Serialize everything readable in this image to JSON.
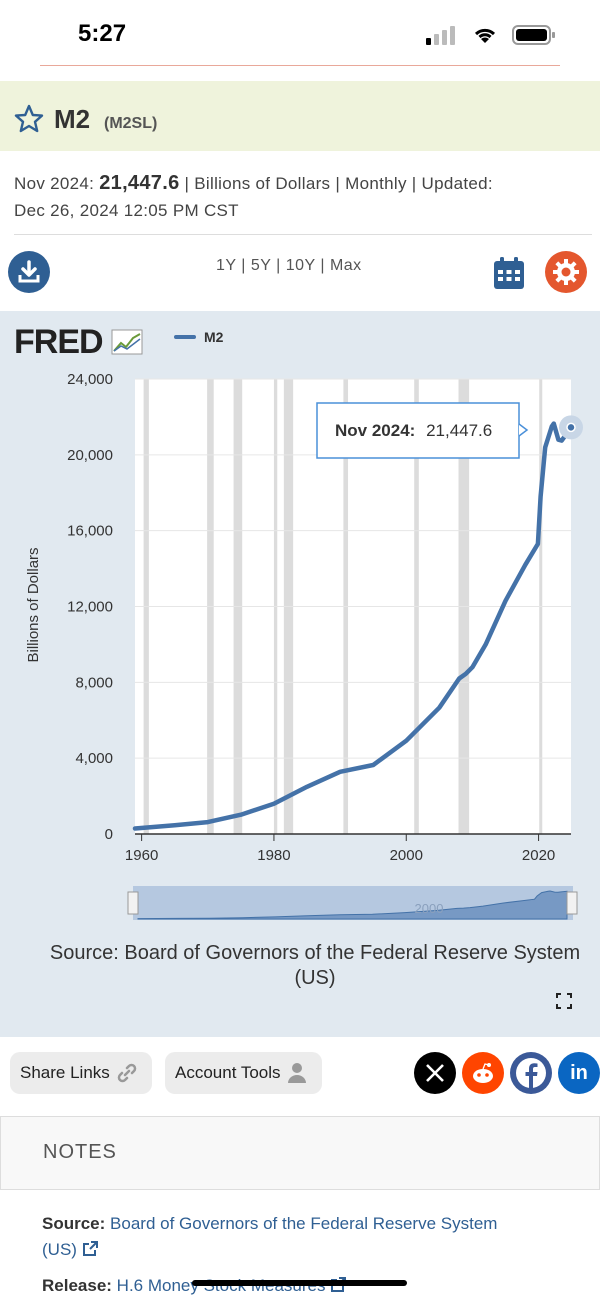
{
  "status": {
    "time": "5:27"
  },
  "series": {
    "title": "M2",
    "id": "(M2SL)",
    "latest_label": "Nov 2024:",
    "latest_value": "21,447.6",
    "units": "| Billions of Dollars | Monthly | Updated:",
    "updated": "Dec 26, 2024 12:05 PM CST"
  },
  "ranges": {
    "r1": "1Y",
    "r5": "5Y",
    "r10": "10Y",
    "rmax": "Max",
    "sep": "|"
  },
  "graph": {
    "logo": "FRED",
    "legend": "M2",
    "tooltip_label": "Nov 2024:",
    "tooltip_value": "21,447.6",
    "source": "Source: Board of Governors of the Federal Reserve System (US)",
    "navigator_label": "2000"
  },
  "chart_data": {
    "type": "line",
    "title": "M2",
    "xlabel": "",
    "ylabel": "Billions of Dollars",
    "ylim": [
      0,
      24000
    ],
    "xlim": [
      1959,
      2024.9
    ],
    "yticks": [
      "0",
      "4,000",
      "8,000",
      "12,000",
      "16,000",
      "20,000",
      "24,000"
    ],
    "xticks": [
      "1960",
      "1980",
      "2000",
      "2020"
    ],
    "series": [
      {
        "name": "M2",
        "x": [
          1959,
          1965,
          1970,
          1975,
          1980,
          1985,
          1990,
          1995,
          2000,
          2005,
          2008,
          2009,
          2010,
          2012,
          2015,
          2018,
          2019.9,
          2020.3,
          2021,
          2022,
          2022.3,
          2023,
          2023.5,
          2024,
          2024.9
        ],
        "values": [
          290,
          460,
          630,
          1020,
          1600,
          2490,
          3280,
          3640,
          4920,
          6660,
          8200,
          8450,
          8800,
          10000,
          12300,
          14200,
          15300,
          17800,
          20400,
          21500,
          21650,
          20800,
          20750,
          21000,
          21447.6
        ]
      }
    ],
    "recessions": [
      [
        1960.3,
        1961.1
      ],
      [
        1969.9,
        1970.9
      ],
      [
        1973.9,
        1975.2
      ],
      [
        1980.0,
        1980.5
      ],
      [
        1981.5,
        1982.9
      ],
      [
        1990.5,
        1991.2
      ],
      [
        2001.2,
        2001.9
      ],
      [
        2007.9,
        2009.5
      ],
      [
        2020.1,
        2020.3
      ]
    ]
  },
  "actions": {
    "share": "Share Links",
    "account": "Account Tools"
  },
  "social": {
    "x": "X",
    "reddit": "reddit",
    "facebook": "f",
    "linkedin": "in"
  },
  "notes": {
    "title": "NOTES",
    "source_label": "Source:",
    "source_value": "Board of Governors of the Federal Reserve System (US)",
    "release_label": "Release:",
    "release_value": "H.6 Money Stock Measures"
  },
  "colors": {
    "line": "#4472a8",
    "recession": "#dcdcdc",
    "accent": "#2f5f93",
    "orange": "#e4572e"
  }
}
